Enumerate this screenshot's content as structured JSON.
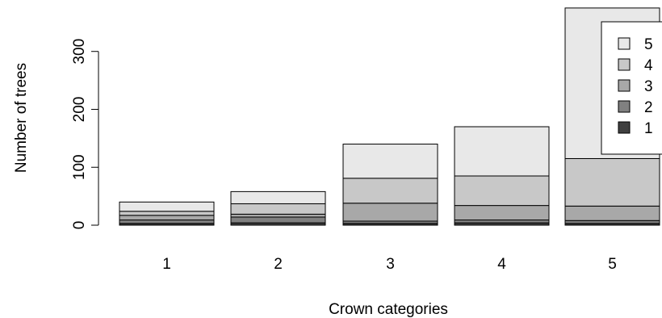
{
  "chart_data": {
    "type": "bar",
    "stacked": true,
    "categories": [
      "1",
      "2",
      "3",
      "4",
      "5"
    ],
    "series": [
      {
        "name": "1",
        "values": [
          3,
          4,
          3,
          4,
          3
        ],
        "color": "#404040"
      },
      {
        "name": "2",
        "values": [
          6,
          10,
          4,
          5,
          5
        ],
        "color": "#808080"
      },
      {
        "name": "3",
        "values": [
          8,
          5,
          31,
          25,
          25
        ],
        "color": "#a8a8a8"
      },
      {
        "name": "4",
        "values": [
          7,
          18,
          43,
          51,
          82
        ],
        "color": "#c8c8c8"
      },
      {
        "name": "5",
        "values": [
          16,
          21,
          59,
          85,
          260
        ],
        "color": "#e8e8e8"
      }
    ],
    "xlabel": "Crown categories",
    "ylabel": "Number of trees",
    "yticks": [
      0,
      100,
      200,
      300
    ],
    "ylim": [
      0,
      375
    ],
    "legend": {
      "placement": "top-right",
      "items": [
        "5",
        "4",
        "3",
        "2",
        "1"
      ]
    }
  }
}
